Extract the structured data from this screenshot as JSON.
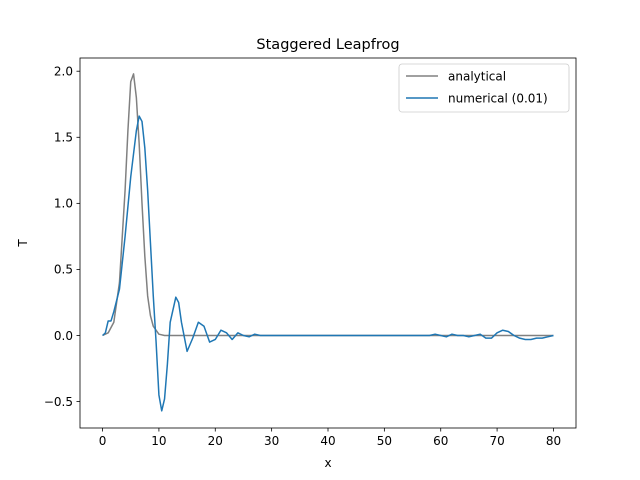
{
  "chart_data": {
    "type": "line",
    "title": "Staggered Leapfrog",
    "xlabel": "x",
    "ylabel": "T",
    "xlim": [
      -4,
      84
    ],
    "ylim": [
      -0.7,
      2.1
    ],
    "xticks": [
      0,
      10,
      20,
      30,
      40,
      50,
      60,
      70,
      80
    ],
    "yticks": [
      -0.5,
      0.0,
      0.5,
      1.0,
      1.5,
      2.0
    ],
    "xtick_labels": [
      "0",
      "10",
      "20",
      "30",
      "40",
      "50",
      "60",
      "70",
      "80"
    ],
    "ytick_labels": [
      "−0.5",
      "0.0",
      "0.5",
      "1.0",
      "1.5",
      "2.0"
    ],
    "grid": false,
    "legend_position": "top-right",
    "series": [
      {
        "name": "analytical",
        "color": "#808080",
        "x": [
          0,
          1,
          2,
          3,
          4,
          4.5,
          5,
          5.5,
          6,
          6.5,
          7,
          7.5,
          8,
          8.5,
          9,
          10,
          11,
          12,
          14,
          20,
          30,
          40,
          50,
          60,
          70,
          80
        ],
        "y": [
          0.0,
          0.02,
          0.1,
          0.4,
          1.1,
          1.55,
          1.92,
          1.98,
          1.8,
          1.45,
          1.0,
          0.6,
          0.3,
          0.15,
          0.07,
          0.01,
          0.0,
          0.0,
          0.0,
          0.0,
          0.0,
          0.0,
          0.0,
          0.0,
          0.0,
          0.0
        ]
      },
      {
        "name": "numerical (0.01)",
        "color": "#1f77b4",
        "x": [
          0,
          0.5,
          1,
          1.5,
          2,
          3,
          4,
          5,
          6,
          6.5,
          7,
          7.5,
          8,
          8.5,
          9,
          9.5,
          10,
          10.5,
          11,
          11.5,
          12,
          13,
          13.5,
          14,
          15,
          16,
          17,
          18,
          19,
          20,
          21,
          22,
          23,
          24,
          25,
          26,
          27,
          28,
          29,
          30,
          31,
          32,
          35,
          40,
          45,
          50,
          55,
          58,
          59,
          60,
          61,
          62,
          63,
          64,
          65,
          66,
          67,
          68,
          69,
          70,
          71,
          72,
          73,
          74,
          75,
          76,
          77,
          78,
          79,
          80
        ],
        "y": [
          0.0,
          0.02,
          0.11,
          0.11,
          0.18,
          0.35,
          0.75,
          1.2,
          1.55,
          1.66,
          1.62,
          1.42,
          1.1,
          0.7,
          0.3,
          -0.05,
          -0.45,
          -0.57,
          -0.48,
          -0.22,
          0.1,
          0.29,
          0.25,
          0.1,
          -0.12,
          -0.02,
          0.1,
          0.07,
          -0.05,
          -0.03,
          0.04,
          0.02,
          -0.03,
          0.02,
          0.0,
          -0.01,
          0.01,
          0.0,
          0.0,
          0.0,
          0.0,
          0.0,
          0.0,
          0.0,
          0.0,
          0.0,
          0.0,
          0.0,
          0.01,
          0.0,
          -0.01,
          0.01,
          0.0,
          0.0,
          -0.01,
          0.0,
          0.01,
          -0.02,
          -0.02,
          0.02,
          0.04,
          0.03,
          0.0,
          -0.02,
          -0.03,
          -0.03,
          -0.02,
          -0.02,
          -0.01,
          0.0
        ]
      }
    ]
  }
}
